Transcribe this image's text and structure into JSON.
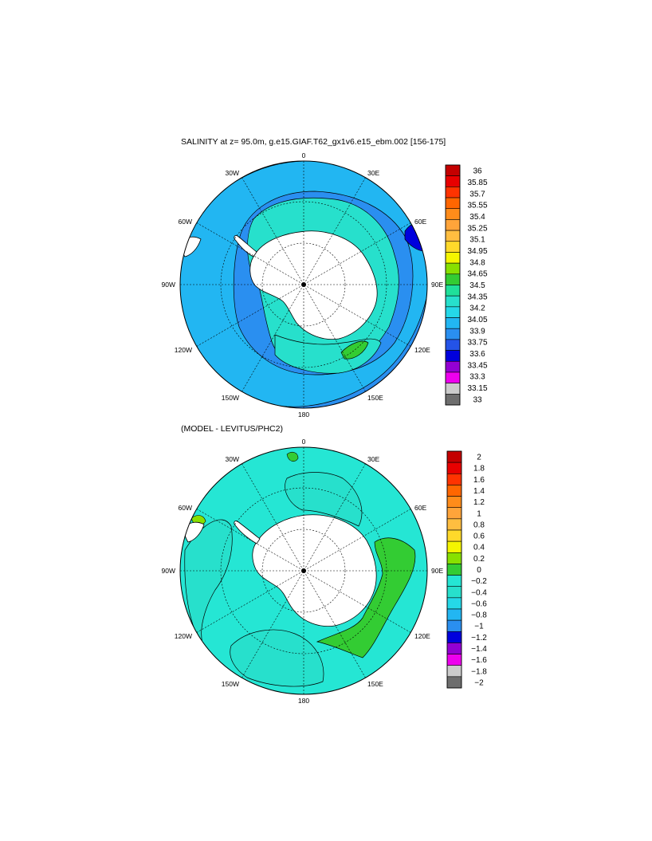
{
  "panels": [
    {
      "id": "salinity",
      "title": "SALINITY at z=  95.0m, g.e15.GIAF.T62_gx1v6.e15_ebm.002 [156-175]",
      "lon_labels": [
        "0",
        "30E",
        "60E",
        "90E",
        "120E",
        "150E",
        "180",
        "150W",
        "120W",
        "90W",
        "60W",
        "30W"
      ],
      "ocean_color": "#2a8ff0",
      "colorbar": {
        "labels": [
          "36",
          "35.85",
          "35.7",
          "35.55",
          "35.4",
          "35.25",
          "35.1",
          "34.95",
          "34.8",
          "34.65",
          "34.5",
          "34.35",
          "34.2",
          "34.05",
          "33.9",
          "33.75",
          "33.6",
          "33.45",
          "33.3",
          "33.15",
          "33"
        ],
        "colors": [
          "#c40000",
          "#e80000",
          "#ff3300",
          "#ff6600",
          "#ff8c1a",
          "#ffa43a",
          "#ffbe40",
          "#ffd92a",
          "#f5f500",
          "#88e000",
          "#33cc33",
          "#1fe09a",
          "#27e0cc",
          "#25d8e8",
          "#22b6f2",
          "#2a8ff0",
          "#2453e8",
          "#0000dd",
          "#9400d3",
          "#ee00ee",
          "#cccccc",
          "#6e6e6e"
        ]
      }
    },
    {
      "id": "difference",
      "title": "(MODEL - LEVITUS/PHC2)",
      "lon_labels": [
        "0",
        "30E",
        "60E",
        "90E",
        "120E",
        "150E",
        "180",
        "150W",
        "120W",
        "90W",
        "60W",
        "30W"
      ],
      "ocean_color": "#25e6d4",
      "colorbar": {
        "labels": [
          "2",
          "1.8",
          "1.6",
          "1.4",
          "1.2",
          "1",
          "0.8",
          "0.6",
          "0.4",
          "0.2",
          "0",
          "−0.2",
          "−0.4",
          "−0.6",
          "−0.8",
          "−1",
          "−1.2",
          "−1.4",
          "−1.6",
          "−1.8",
          "−2"
        ],
        "colors": [
          "#c40000",
          "#e80000",
          "#ff3300",
          "#ff6600",
          "#ff8c1a",
          "#ffa43a",
          "#ffbe40",
          "#ffd92a",
          "#f5f500",
          "#88e000",
          "#33cc33",
          "#25e6d4",
          "#27e0cc",
          "#25d8e8",
          "#22b6f2",
          "#2a8ff0",
          "#0000dd",
          "#9400d3",
          "#ee00ee",
          "#cccccc",
          "#6e6e6e"
        ]
      }
    }
  ]
}
